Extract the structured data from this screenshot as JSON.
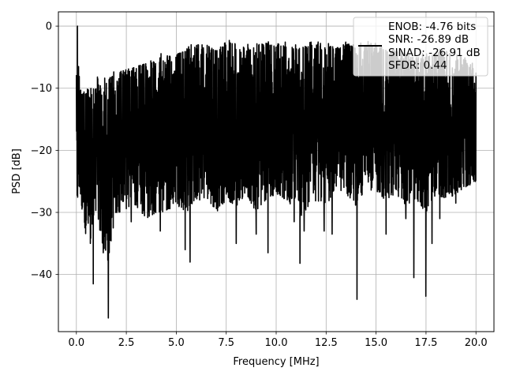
{
  "chart_data": {
    "type": "line",
    "title": "",
    "xlabel": "Frequency [MHz]",
    "ylabel": "PSD [dB]",
    "xlim": [
      -0.9,
      20.9
    ],
    "ylim": [
      -49.2,
      2.3
    ],
    "xticks": [
      0.0,
      2.5,
      5.0,
      7.5,
      10.0,
      12.5,
      15.0,
      17.5,
      20.0
    ],
    "xtick_labels": [
      "0.0",
      "2.5",
      "5.0",
      "7.5",
      "10.0",
      "12.5",
      "15.0",
      "17.5",
      "20.0"
    ],
    "yticks": [
      0,
      -10,
      -20,
      -30,
      -40
    ],
    "ytick_labels": [
      "0",
      "−10",
      "−20",
      "−30",
      "−40"
    ],
    "grid": true,
    "legend": {
      "placement": "top-right",
      "entries": [
        "ENOB: -4.76 bits",
        "SNR: -26.89 dB",
        "SINAD: -26.91 dB",
        "SFDR: 0.44"
      ]
    },
    "series_color": "#000000",
    "series": [
      {
        "x": [
          0.0,
          0.05,
          0.1,
          0.2,
          0.3,
          0.4,
          0.5,
          0.6,
          0.7,
          0.8,
          0.9,
          1.0,
          1.2,
          1.4,
          1.6,
          1.8,
          2.0,
          2.5,
          3.0,
          3.5,
          4.0,
          4.5,
          5.0,
          5.5,
          6.0,
          6.5,
          7.0,
          7.5,
          8.0,
          8.5,
          9.0,
          9.5,
          10.0,
          10.5,
          11.0,
          11.5,
          12.0,
          12.5,
          13.0,
          13.5,
          14.0,
          14.5,
          15.0,
          15.5,
          16.0,
          16.5,
          17.0,
          17.5,
          18.0,
          18.5,
          19.0,
          19.5,
          20.0
        ],
        "upper": [
          -6.5,
          0.0,
          -4.0,
          -10.0,
          -11.0,
          -10.5,
          -11.0,
          -9.5,
          -10.0,
          -9.0,
          -10.5,
          -7.5,
          -9.5,
          -9.0,
          -8.5,
          -8.0,
          -7.5,
          -7.0,
          -6.5,
          -6.0,
          -5.0,
          -5.0,
          -4.5,
          -4.0,
          -3.0,
          -3.0,
          -4.0,
          -2.5,
          -3.0,
          -3.5,
          -3.0,
          -2.8,
          -2.8,
          -3.0,
          -3.5,
          -3.2,
          -3.0,
          -3.5,
          -3.0,
          -3.0,
          -2.5,
          -3.0,
          -3.0,
          -3.5,
          -4.0,
          -4.5,
          -5.0,
          -5.0,
          -4.5,
          -4.0,
          -5.0,
          -5.5,
          -7.0
        ],
        "lower": [
          -28.0,
          -30.0,
          -26.0,
          -27.0,
          -30.0,
          -33.0,
          -34.0,
          -32.0,
          -35.0,
          -33.0,
          -29.0,
          -30.0,
          -34.0,
          -36.0,
          -38.0,
          -33.0,
          -30.0,
          -30.0,
          -29.0,
          -31.0,
          -30.0,
          -30.0,
          -29.0,
          -30.0,
          -28.0,
          -28.0,
          -30.0,
          -28.0,
          -29.0,
          -27.0,
          -30.0,
          -28.0,
          -27.0,
          -28.0,
          -30.0,
          -31.0,
          -28.0,
          -29.0,
          -26.0,
          -27.0,
          -29.0,
          -26.0,
          -27.0,
          -28.0,
          -27.0,
          -29.0,
          -28.0,
          -30.0,
          -27.0,
          -28.0,
          -27.0,
          -26.0,
          -25.0
        ],
        "dips": [
          [
            0.85,
            -41.5
          ],
          [
            1.35,
            -36.5
          ],
          [
            1.6,
            -47.0
          ],
          [
            1.85,
            -32.5
          ],
          [
            2.75,
            -31.5
          ],
          [
            4.2,
            -33.0
          ],
          [
            5.45,
            -36.0
          ],
          [
            5.7,
            -38.0
          ],
          [
            8.0,
            -35.0
          ],
          [
            9.0,
            -33.5
          ],
          [
            9.6,
            -36.5
          ],
          [
            10.9,
            -31.5
          ],
          [
            11.2,
            -38.2
          ],
          [
            11.4,
            -33.0
          ],
          [
            12.4,
            -33.0
          ],
          [
            12.8,
            -33.5
          ],
          [
            14.05,
            -44.0
          ],
          [
            15.5,
            -33.5
          ],
          [
            16.5,
            -31.0
          ],
          [
            16.9,
            -40.5
          ],
          [
            17.5,
            -43.5
          ],
          [
            17.8,
            -35.0
          ],
          [
            18.2,
            -31.0
          ],
          [
            19.0,
            -28.5
          ]
        ]
      }
    ]
  }
}
